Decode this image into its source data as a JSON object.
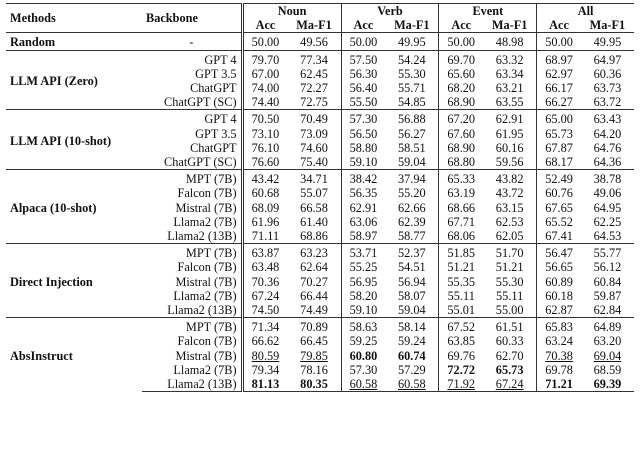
{
  "table": {
    "headers": {
      "methods": "Methods",
      "backbone": "Backbone",
      "tasks": [
        "Noun",
        "Verb",
        "Event",
        "All"
      ],
      "metrics": [
        "Acc",
        "Ma-F1"
      ]
    },
    "groups": [
      {
        "name": "Random",
        "rows": [
          [
            "-",
            "50.00",
            "49.56",
            "50.00",
            "49.95",
            "50.00",
            "48.98",
            "50.00",
            "49.95"
          ]
        ]
      },
      {
        "name": "LLM API (Zero)",
        "rows": [
          [
            "GPT 4",
            "79.70",
            "77.34",
            "57.50",
            "54.24",
            "69.70",
            "63.32",
            "68.97",
            "64.97"
          ],
          [
            "GPT 3.5",
            "67.00",
            "62.45",
            "56.30",
            "55.30",
            "65.60",
            "63.34",
            "62.97",
            "60.36"
          ],
          [
            "ChatGPT",
            "74.00",
            "72.27",
            "56.40",
            "55.71",
            "68.20",
            "63.21",
            "66.17",
            "63.73"
          ],
          [
            "ChatGPT (SC)",
            "74.40",
            "72.75",
            "55.50",
            "54.85",
            "68.90",
            "63.55",
            "66.27",
            "63.72"
          ]
        ]
      },
      {
        "name": "LLM API (10-shot)",
        "rows": [
          [
            "GPT 4",
            "70.50",
            "70.49",
            "57.30",
            "56.88",
            "67.20",
            "62.91",
            "65.00",
            "63.43"
          ],
          [
            "GPT 3.5",
            "73.10",
            "73.09",
            "56.50",
            "56.27",
            "67.60",
            "61.95",
            "65.73",
            "64.20"
          ],
          [
            "ChatGPT",
            "76.10",
            "74.60",
            "58.80",
            "58.51",
            "68.90",
            "60.16",
            "67.87",
            "64.76"
          ],
          [
            "ChatGPT (SC)",
            "76.60",
            "75.40",
            "59.10",
            "59.04",
            "68.80",
            "59.56",
            "68.17",
            "64.36"
          ]
        ]
      },
      {
        "name": "Alpaca (10-shot)",
        "rows": [
          [
            "MPT (7B)",
            "43.42",
            "34.71",
            "38.42",
            "37.94",
            "65.33",
            "43.82",
            "52.49",
            "38.78"
          ],
          [
            "Falcon (7B)",
            "60.68",
            "55.07",
            "56.35",
            "55.20",
            "63.19",
            "43.72",
            "60.76",
            "49.06"
          ],
          [
            "Mistral (7B)",
            "68.09",
            "66.58",
            "62.91",
            "62.66",
            "68.66",
            "63.15",
            "67.65",
            "64.95"
          ],
          [
            "Llama2 (7B)",
            "61.96",
            "61.40",
            "63.06",
            "62.39",
            "67.71",
            "62.53",
            "65.52",
            "62.25"
          ],
          [
            "Llama2 (13B)",
            "71.11",
            "68.86",
            "58.97",
            "58.77",
            "68.06",
            "62.05",
            "67.41",
            "64.53"
          ]
        ]
      },
      {
        "name": "Direct Injection",
        "rows": [
          [
            "MPT (7B)",
            "63.87",
            "63.23",
            "53.71",
            "52.37",
            "51.85",
            "51.70",
            "56.47",
            "55.77"
          ],
          [
            "Falcon (7B)",
            "63.48",
            "62.64",
            "55.25",
            "54.51",
            "51.21",
            "51.21",
            "56.65",
            "56.12"
          ],
          [
            "Mistral (7B)",
            "70.36",
            "70.27",
            "56.95",
            "56.94",
            "55.35",
            "55.30",
            "60.89",
            "60.84"
          ],
          [
            "Llama2 (7B)",
            "67.24",
            "66.44",
            "58.20",
            "58.07",
            "55.11",
            "55.11",
            "60.18",
            "59.87"
          ],
          [
            "Llama2 (13B)",
            "74.50",
            "74.49",
            "59.10",
            "59.04",
            "55.01",
            "55.00",
            "62.87",
            "62.84"
          ]
        ]
      },
      {
        "name": "AbsInstruct",
        "rows": [
          [
            "MPT (7B)",
            "71.34",
            "70.89",
            "58.63",
            "58.14",
            "67.52",
            "61.51",
            "65.83",
            "64.89"
          ],
          [
            "Falcon (7B)",
            "66.62",
            "66.45",
            "59.25",
            "59.24",
            "63.85",
            "60.33",
            "63.24",
            "63.20"
          ],
          [
            "Mistral (7B)",
            "80.59",
            "79.85",
            "60.80",
            "60.74",
            "69.76",
            "62.70",
            "70.38",
            "69.04"
          ],
          [
            "Llama2 (7B)",
            "79.34",
            "78.16",
            "57.30",
            "57.29",
            "72.72",
            "65.73",
            "69.78",
            "68.59"
          ],
          [
            "Llama2 (13B)",
            "81.13",
            "80.35",
            "60.58",
            "60.58",
            "71.92",
            "67.24",
            "71.21",
            "69.39"
          ]
        ]
      }
    ]
  }
}
